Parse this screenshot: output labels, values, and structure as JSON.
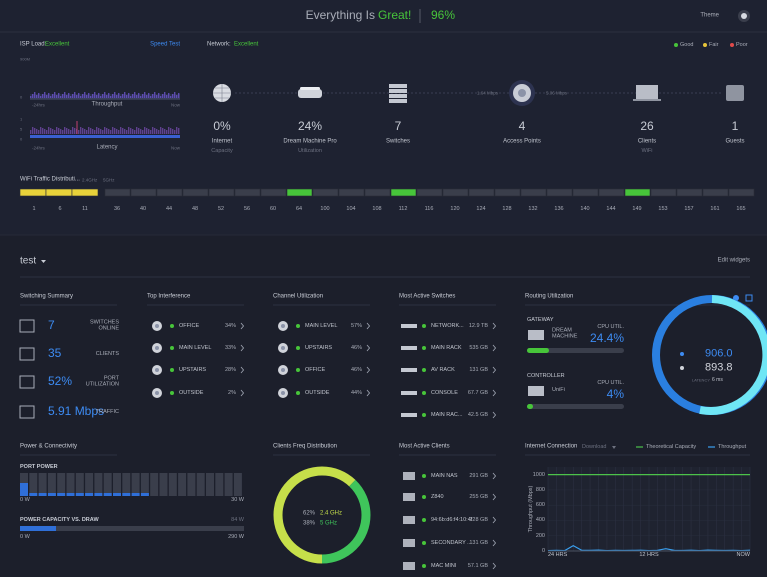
{
  "header": {
    "status_prefix": "Everything Is",
    "status_word": "Great!",
    "score": "96%",
    "theme_label": "Theme"
  },
  "isp": {
    "label": "ISP Load:",
    "status": "Excellent",
    "speed_test": "Speed Test",
    "throughput": {
      "top": "900M",
      "zero": "0",
      "start": "-24hrs",
      "title": "Throughput",
      "end": "Now"
    },
    "latency": {
      "top": "1",
      "mid": "5",
      "zero": "0",
      "start": "-24hrs",
      "title": "Latency",
      "end": "Now"
    }
  },
  "network": {
    "label": "Network:",
    "status": "Excellent",
    "legend": [
      "Good",
      "Fair",
      "Poor"
    ],
    "links": [
      "1.64 Mbps",
      "5.06 Mbps"
    ],
    "stats": [
      {
        "value": "0%",
        "label": "Internet",
        "sub": "Capacity"
      },
      {
        "value": "24%",
        "label": "Dream Machine Pro",
        "sub": "Utilization"
      },
      {
        "value": "7",
        "label": "Switches"
      },
      {
        "value": "4",
        "label": "Access Points"
      },
      {
        "value": "26",
        "label": "Clients",
        "sub": "WiFi"
      },
      {
        "value": "1",
        "label": "Guests"
      }
    ]
  },
  "wifi": {
    "title": "WiFi Traffic Distributi...",
    "bands": [
      "2.4GHz",
      "5GHz"
    ],
    "channels": [
      "1",
      "6",
      "11",
      "36",
      "40",
      "44",
      "48",
      "52",
      "56",
      "60",
      "64",
      "100",
      "104",
      "108",
      "112",
      "116",
      "120",
      "124",
      "128",
      "132",
      "136",
      "140",
      "144",
      "149",
      "153",
      "157",
      "161",
      "165"
    ]
  },
  "site": {
    "name": "test",
    "edit": "Edit widgets"
  },
  "switching_summary": {
    "title": "Switching Summary",
    "rows": [
      {
        "value": "7",
        "label": "SWITCHES ONLINE"
      },
      {
        "value": "35",
        "label": "CLIENTS"
      },
      {
        "value": "52%",
        "label": "PORT UTILIZATION"
      },
      {
        "value": "5.91 Mbps",
        "label": "TRAFFIC"
      }
    ]
  },
  "top_interference": {
    "title": "Top Interference",
    "rows": [
      {
        "name": "OFFICE",
        "value": "34%"
      },
      {
        "name": "MAIN LEVEL",
        "value": "33%"
      },
      {
        "name": "UPSTAIRS",
        "value": "28%"
      },
      {
        "name": "OUTSIDE",
        "value": "2%"
      }
    ]
  },
  "channel_utilization": {
    "title": "Channel Utilization",
    "rows": [
      {
        "name": "MAIN LEVEL",
        "value": "57%"
      },
      {
        "name": "UPSTAIRS",
        "value": "46%"
      },
      {
        "name": "OFFICE",
        "value": "46%"
      },
      {
        "name": "OUTSIDE",
        "value": "44%"
      }
    ]
  },
  "most_active_switches": {
    "title": "Most Active Switches",
    "rows": [
      {
        "name": "NETWORK...",
        "value": "12.9 TB"
      },
      {
        "name": "MAIN RACK",
        "value": "535 GB"
      },
      {
        "name": "AV RACK",
        "value": "131 GB"
      },
      {
        "name": "CONSOLE",
        "value": "67.7 GB"
      },
      {
        "name": "MAIN RAC...",
        "value": "42.5 GB"
      }
    ]
  },
  "routing_utilization": {
    "title": "Routing Utilization",
    "gateway": {
      "heading": "GATEWAY",
      "device": "DREAM MACHINE",
      "metric": "CPU UTIL.",
      "value": "24.4%"
    },
    "controller": {
      "heading": "CONTROLLER",
      "device": "UniFi",
      "metric": "CPU UTIL.",
      "value": "4%"
    },
    "gauge": {
      "primary": "906.0",
      "secondary": "893.8",
      "latency": "LATENCY",
      "latency_value": "6 ms"
    }
  },
  "power": {
    "title": "Power & Connectivity",
    "port_power": "PORT POWER",
    "port_min": "0 W",
    "port_max": "30 W",
    "capacity": "POWER CAPACITY VS. DRAW",
    "draw": "84 W",
    "cap_min": "0 W",
    "cap_max": "290 W"
  },
  "clients_freq": {
    "title": "Clients Freq Distribution"
  },
  "most_active_clients": {
    "title": "Most Active Clients",
    "rows": [
      {
        "name": "MAIN NAS",
        "value": "291 GB"
      },
      {
        "name": "Z840",
        "value": "255 GB"
      },
      {
        "name": "94:6b:d6:f4:10:4f",
        "value": "228 GB"
      },
      {
        "name": "SECONDARY ...",
        "value": "131 GB"
      },
      {
        "name": "MAC MINI",
        "value": "57.1 GB"
      }
    ]
  },
  "internet_connection": {
    "title": "Internet Connection",
    "mode": "Download"
  },
  "chart_data": [
    {
      "type": "line",
      "y_label": "Throughput (Mbps)",
      "categories": [
        "24 HRS",
        null,
        null,
        null,
        null,
        null,
        null,
        null,
        null,
        null,
        null,
        null,
        "12 HRS",
        null,
        null,
        null,
        null,
        null,
        null,
        null,
        null,
        null,
        null,
        null,
        "NOW"
      ],
      "series": [
        {
          "name": "Theoretical Capacity",
          "color": "#4cc24a",
          "values": [
            1000,
            1000,
            1000,
            1000,
            1000,
            1000,
            1000,
            1000,
            1000,
            1000,
            1000,
            1000,
            1000,
            1000,
            1000,
            1000,
            1000,
            1000,
            1000,
            1000,
            1000,
            1000,
            1000,
            1000,
            1000
          ]
        },
        {
          "name": "Throughput",
          "color": "#3aa0f0",
          "values": [
            5,
            8,
            6,
            70,
            10,
            8,
            12,
            6,
            9,
            7,
            8,
            10,
            6,
            9,
            30,
            8,
            7,
            10,
            6,
            12,
            9,
            7,
            8,
            6,
            10
          ]
        }
      ],
      "ylim": [
        0,
        1100
      ],
      "yticks": [
        0,
        200,
        400,
        600,
        800,
        1000
      ],
      "grid": true
    },
    {
      "type": "pie",
      "categories": [
        "2.4 GHz",
        "5 GHz"
      ],
      "values": [
        62,
        38
      ],
      "value_labels": [
        "62%",
        "38%"
      ],
      "colors": [
        "#c6df4a",
        "#3fc55b"
      ]
    }
  ]
}
